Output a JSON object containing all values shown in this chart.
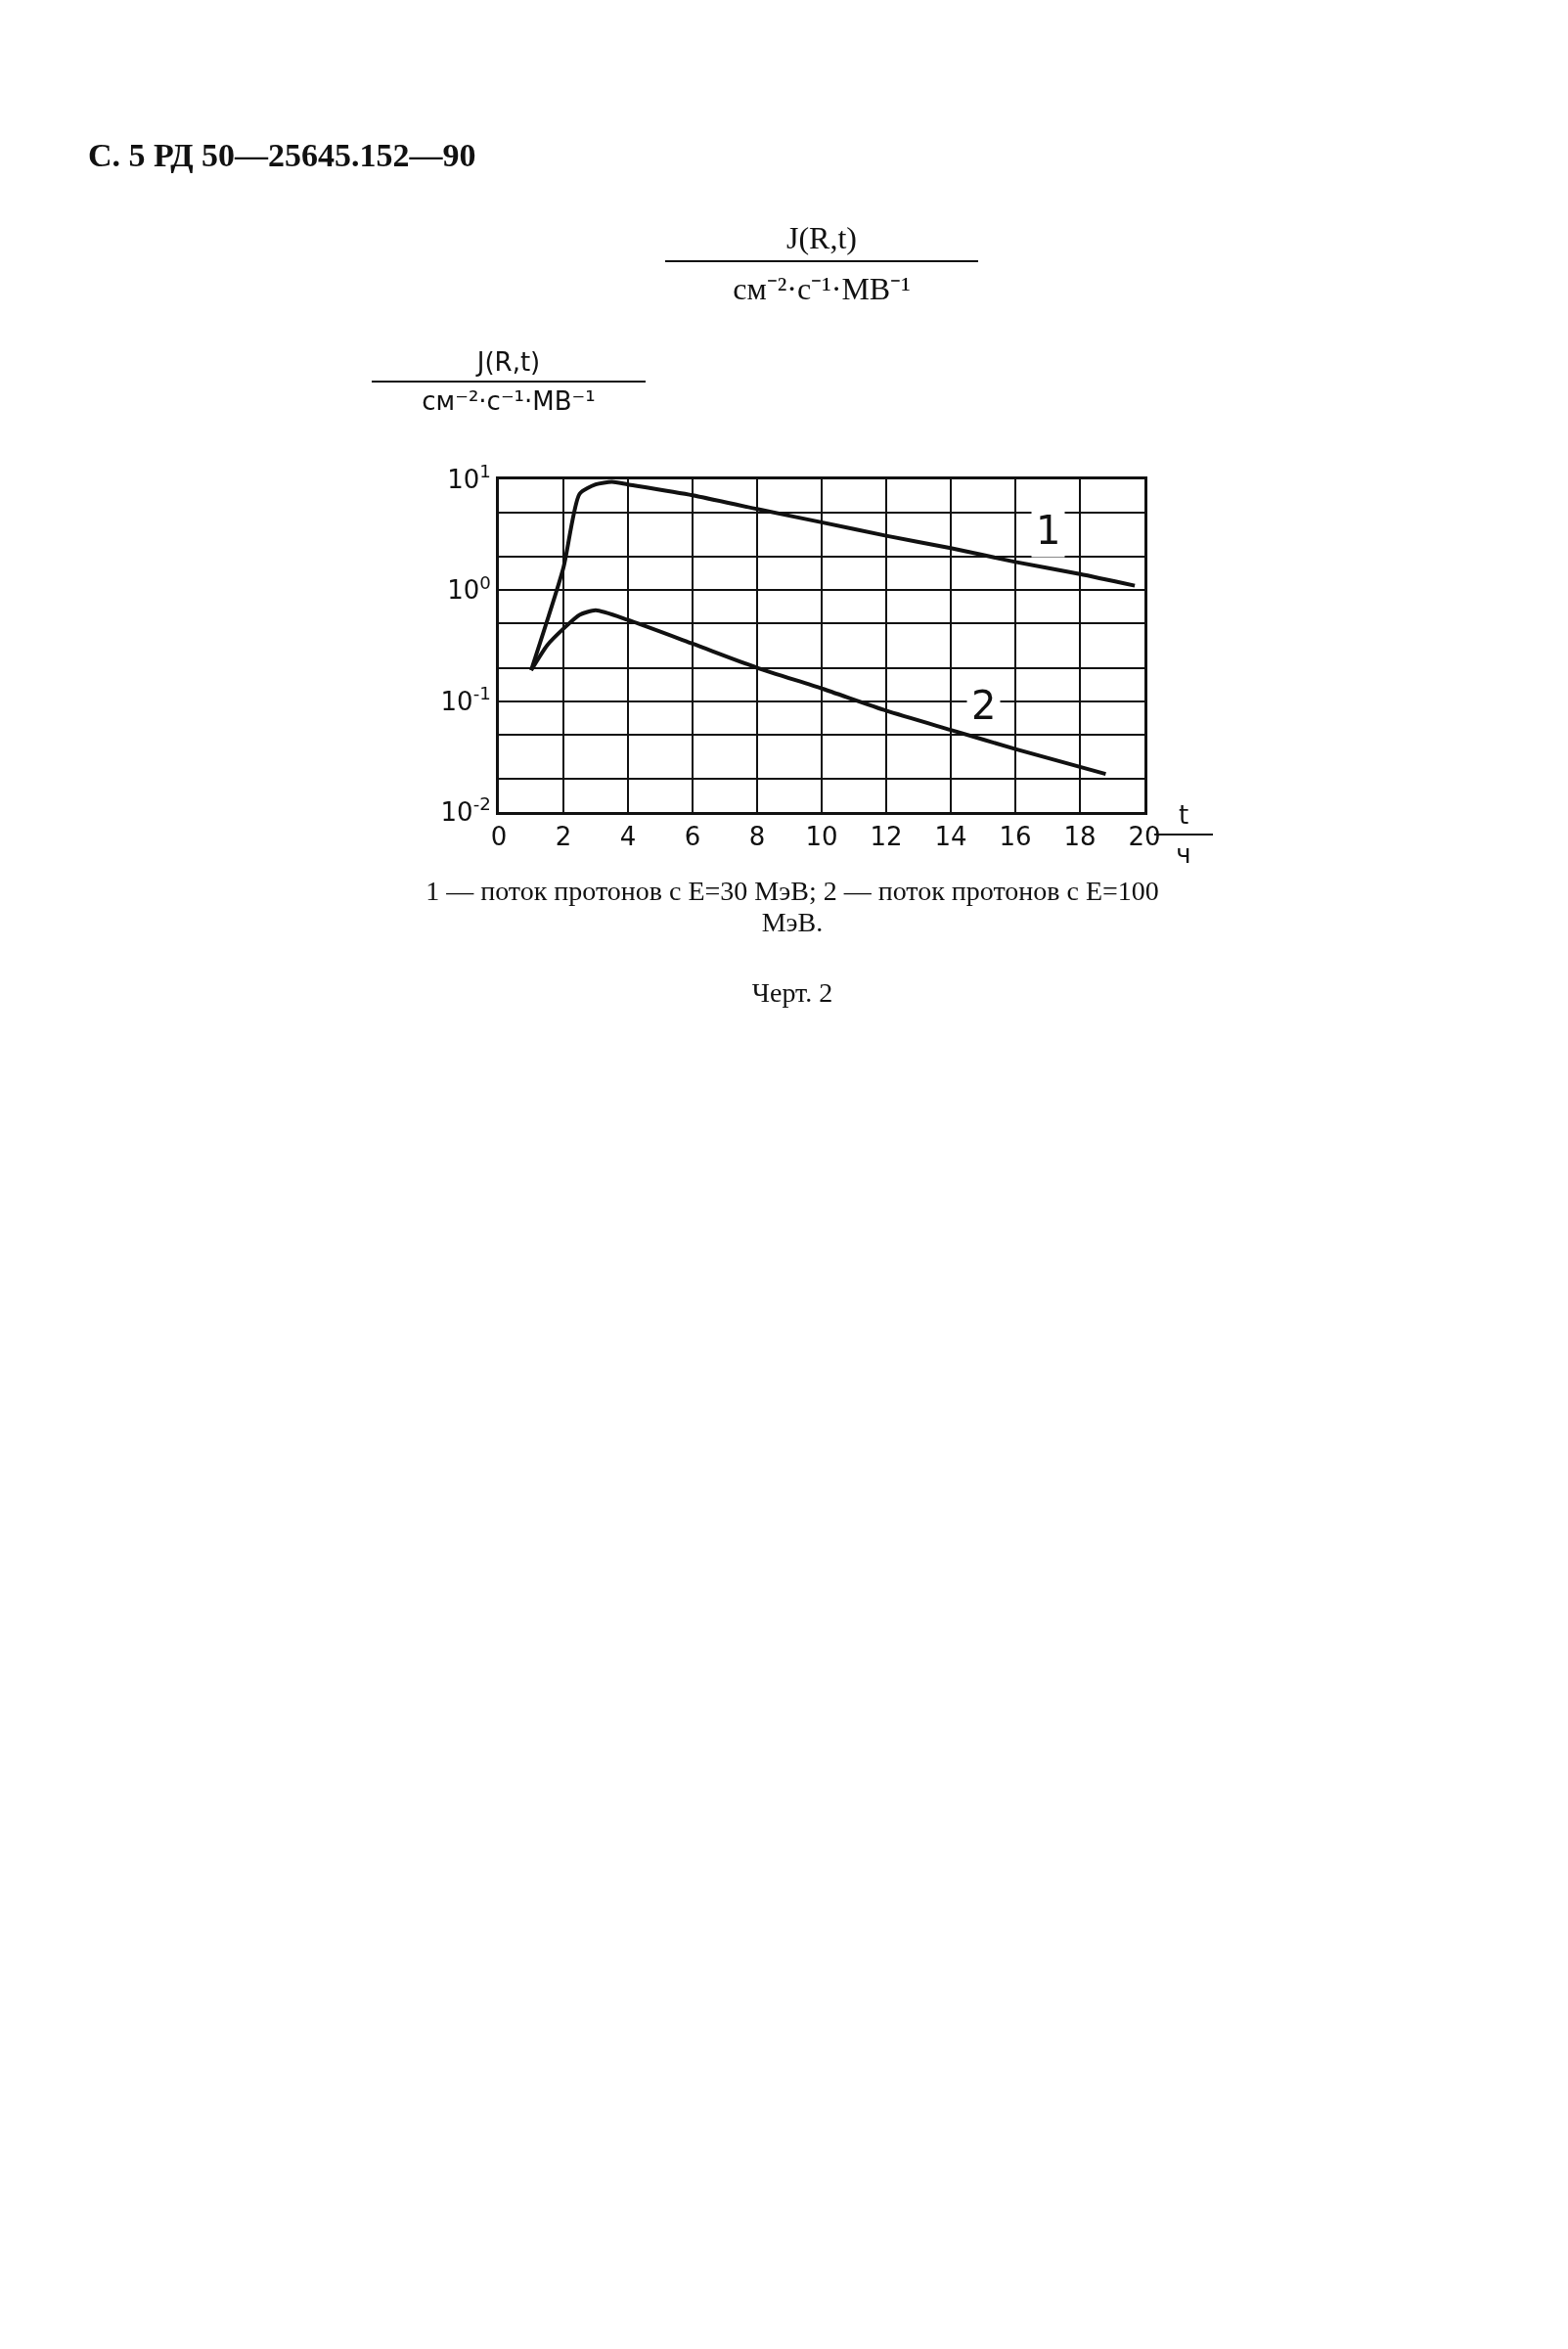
{
  "chart_data": {
    "type": "line",
    "title": "С. 5 РД 50—25645.152—90",
    "subtitle": "J(R,t)\nсм⁻²·с⁻¹·МВ⁻¹",
    "ylabel": "J(R,t)\nсм⁻²·с⁻¹·МВ⁻¹",
    "xlabel": "t\nч",
    "series": [
      {
        "name": "1",
        "color": "#111111",
        "x": [
          1,
          2,
          2.5,
          3,
          3.5,
          4,
          6,
          8,
          10,
          12,
          14,
          16,
          18,
          19.7
        ],
        "values": [
          0.19,
          1.6,
          7.4,
          9,
          9.5,
          9,
          7.2,
          5.4,
          4.1,
          3.1,
          2.4,
          1.8,
          1.4,
          1.1
        ]
      },
      {
        "name": "2",
        "color": "#111111",
        "x": [
          1,
          1.5,
          2,
          2.5,
          3,
          4,
          6,
          8,
          10,
          12,
          14,
          16,
          18.8
        ],
        "values": [
          0.19,
          0.32,
          0.45,
          0.6,
          0.66,
          0.54,
          0.33,
          0.2,
          0.13,
          0.082,
          0.055,
          0.037,
          0.022
        ]
      }
    ],
    "log": "y",
    "xlim": [
      0,
      20
    ],
    "xticks": [
      0,
      2,
      4,
      6,
      8,
      10,
      12,
      14,
      16,
      18,
      20
    ],
    "ylim": [
      0.01,
      10
    ],
    "yticks": [
      {
        "value": 0.01,
        "label": "10$^{-2}$"
      },
      {
        "value": 0.02,
        "label": null
      },
      {
        "value": 0.05,
        "label": null
      },
      {
        "value": 0.1,
        "label": "10$^{-1}$"
      },
      {
        "value": 0.2,
        "label": null
      },
      {
        "value": 0.5,
        "label": null
      },
      {
        "value": 1,
        "label": "10$^{0}$"
      },
      {
        "value": 2,
        "label": null
      },
      {
        "value": 5,
        "label": null
      },
      {
        "value": 10,
        "label": "10$^{1}$"
      }
    ],
    "grid": true,
    "legend": false,
    "marker": "none",
    "line_style": "solid",
    "annotations": [
      "1 — поток протонов с E=30 МэВ; 2 — поток протонов с E=100 МэВ.",
      "Черт. 2"
    ]
  }
}
